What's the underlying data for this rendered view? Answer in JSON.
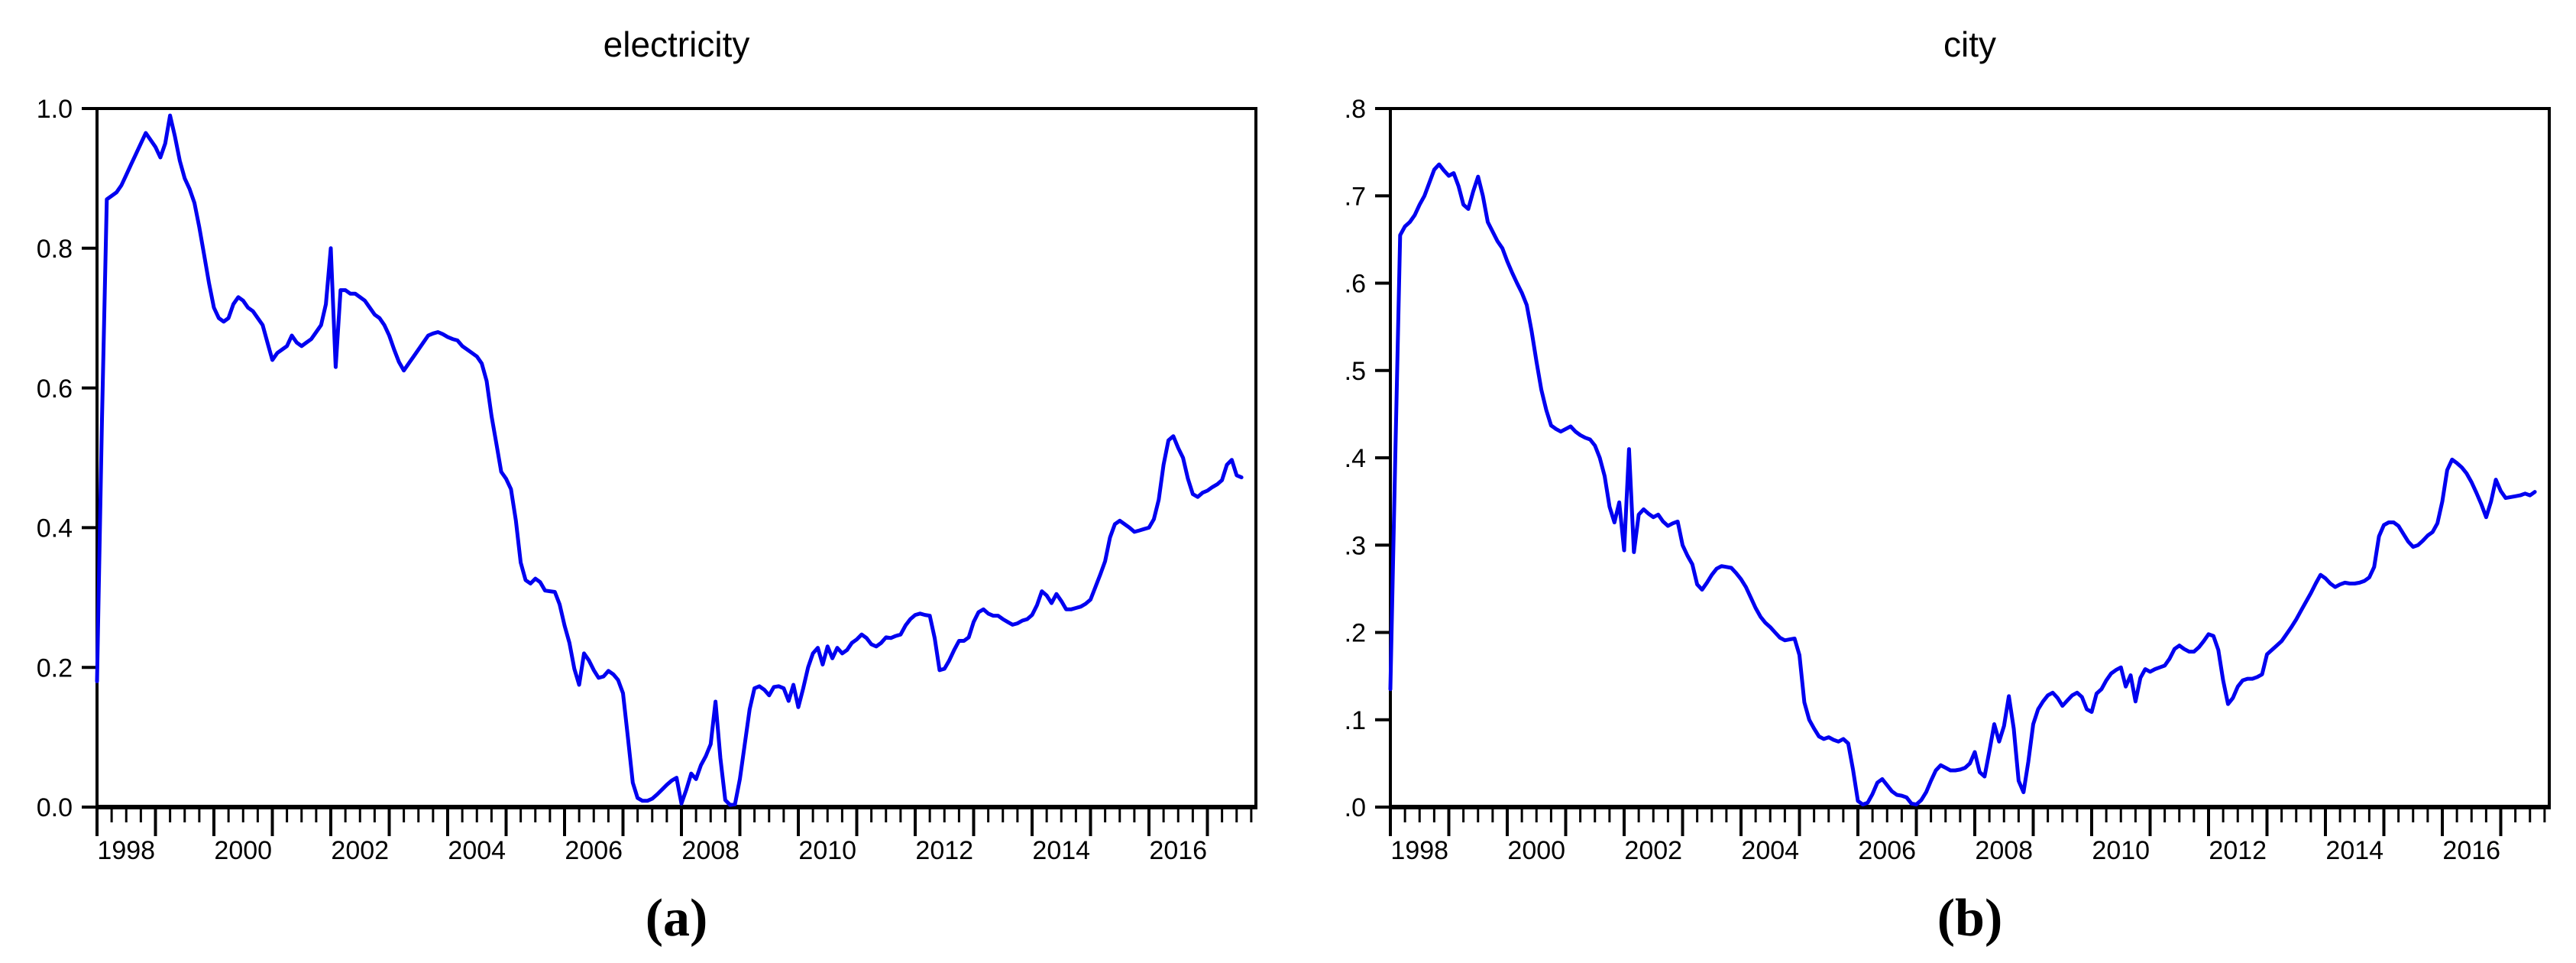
{
  "figure": {
    "background": "#ffffff",
    "axis_color": "#000000",
    "tick_label_color": "#000000"
  },
  "chart_data": [
    {
      "type": "line",
      "id": "electricity",
      "title": "electricity",
      "caption": "(a)",
      "line_color": "#0000F0",
      "grid": false,
      "legend": "none",
      "frequency": "monthly",
      "x_start_year": 1998.0,
      "xlim": [
        1998.0,
        2017.83
      ],
      "ylim": [
        0.0,
        1.0
      ],
      "y_tick_values": [
        1.0,
        0.8,
        0.6,
        0.4,
        0.2,
        0.0
      ],
      "y_tick_labels": [
        "1.0",
        "0.8",
        "0.6",
        "0.4",
        "0.2",
        "0.0"
      ],
      "x_tick_label_years": [
        1998,
        2000,
        2002,
        2004,
        2006,
        2008,
        2010,
        2012,
        2014,
        2016
      ],
      "x_tick_labels": [
        "1998",
        "2000",
        "2002",
        "2004",
        "2006",
        "2008",
        "2010",
        "2012",
        "2014",
        "2016"
      ],
      "x_minor_tick": "quarterly",
      "values": [
        0.18,
        0.55,
        0.87,
        0.875,
        0.88,
        0.89,
        0.905,
        0.92,
        0.935,
        0.95,
        0.965,
        0.955,
        0.945,
        0.93,
        0.95,
        0.99,
        0.96,
        0.925,
        0.9,
        0.885,
        0.865,
        0.83,
        0.79,
        0.75,
        0.715,
        0.7,
        0.695,
        0.7,
        0.72,
        0.73,
        0.725,
        0.715,
        0.71,
        0.7,
        0.69,
        0.665,
        0.64,
        0.65,
        0.655,
        0.66,
        0.675,
        0.665,
        0.66,
        0.665,
        0.67,
        0.68,
        0.69,
        0.72,
        0.8,
        0.63,
        0.74,
        0.74,
        0.735,
        0.735,
        0.73,
        0.725,
        0.715,
        0.705,
        0.7,
        0.69,
        0.675,
        0.655,
        0.637,
        0.625,
        0.635,
        0.645,
        0.655,
        0.665,
        0.675,
        0.678,
        0.68,
        0.677,
        0.673,
        0.67,
        0.668,
        0.66,
        0.655,
        0.65,
        0.645,
        0.635,
        0.61,
        0.56,
        0.52,
        0.48,
        0.47,
        0.455,
        0.41,
        0.35,
        0.325,
        0.32,
        0.327,
        0.322,
        0.31,
        0.309,
        0.308,
        0.29,
        0.26,
        0.235,
        0.198,
        0.175,
        0.22,
        0.21,
        0.196,
        0.185,
        0.187,
        0.195,
        0.19,
        0.182,
        0.163,
        0.1,
        0.035,
        0.013,
        0.009,
        0.009,
        0.012,
        0.018,
        0.025,
        0.032,
        0.038,
        0.042,
        0.005,
        0.025,
        0.048,
        0.04,
        0.06,
        0.073,
        0.09,
        0.151,
        0.07,
        0.01,
        0.003,
        0.004,
        0.04,
        0.09,
        0.14,
        0.17,
        0.173,
        0.168,
        0.16,
        0.172,
        0.173,
        0.17,
        0.152,
        0.175,
        0.143,
        0.17,
        0.2,
        0.22,
        0.228,
        0.204,
        0.23,
        0.213,
        0.228,
        0.22,
        0.225,
        0.235,
        0.24,
        0.247,
        0.242,
        0.233,
        0.23,
        0.235,
        0.243,
        0.242,
        0.245,
        0.247,
        0.26,
        0.269,
        0.275,
        0.277,
        0.275,
        0.274,
        0.242,
        0.196,
        0.198,
        0.21,
        0.225,
        0.238,
        0.238,
        0.243,
        0.265,
        0.279,
        0.283,
        0.277,
        0.274,
        0.274,
        0.269,
        0.265,
        0.261,
        0.263,
        0.267,
        0.269,
        0.275,
        0.289,
        0.309,
        0.303,
        0.292,
        0.305,
        0.295,
        0.283,
        0.283,
        0.285,
        0.287,
        0.291,
        0.297,
        0.315,
        0.333,
        0.352,
        0.386,
        0.405,
        0.41,
        0.405,
        0.4,
        0.394,
        0.396,
        0.398,
        0.4,
        0.412,
        0.44,
        0.49,
        0.525,
        0.531,
        0.514,
        0.5,
        0.47,
        0.448,
        0.444,
        0.45,
        0.453,
        0.458,
        0.462,
        0.468,
        0.49,
        0.497,
        0.475,
        0.472
      ]
    },
    {
      "type": "line",
      "id": "city",
      "title": "city",
      "caption": "(b)",
      "line_color": "#0000F0",
      "grid": false,
      "legend": "none",
      "frequency": "monthly",
      "x_start_year": 1998.0,
      "xlim": [
        1998.0,
        2017.83
      ],
      "ylim": [
        0.0,
        0.8
      ],
      "y_tick_values": [
        0.8,
        0.7,
        0.6,
        0.5,
        0.4,
        0.3,
        0.2,
        0.1,
        0.0
      ],
      "y_tick_labels": [
        ".8",
        ".7",
        ".6",
        ".5",
        ".4",
        ".3",
        ".2",
        ".1",
        ".0"
      ],
      "x_tick_label_years": [
        1998,
        2000,
        2002,
        2004,
        2006,
        2008,
        2010,
        2012,
        2014,
        2016
      ],
      "x_tick_labels": [
        "1998",
        "2000",
        "2002",
        "2004",
        "2006",
        "2008",
        "2010",
        "2012",
        "2014",
        "2016"
      ],
      "x_minor_tick": "quarterly",
      "values": [
        0.135,
        0.4,
        0.655,
        0.665,
        0.67,
        0.678,
        0.69,
        0.7,
        0.715,
        0.73,
        0.736,
        0.729,
        0.723,
        0.726,
        0.711,
        0.69,
        0.685,
        0.705,
        0.722,
        0.7,
        0.67,
        0.659,
        0.648,
        0.64,
        0.625,
        0.612,
        0.6,
        0.589,
        0.575,
        0.545,
        0.51,
        0.478,
        0.455,
        0.437,
        0.433,
        0.43,
        0.433,
        0.436,
        0.43,
        0.426,
        0.423,
        0.421,
        0.414,
        0.4,
        0.379,
        0.344,
        0.326,
        0.349,
        0.294,
        0.41,
        0.292,
        0.335,
        0.341,
        0.336,
        0.332,
        0.335,
        0.327,
        0.322,
        0.325,
        0.327,
        0.3,
        0.288,
        0.278,
        0.255,
        0.249,
        0.257,
        0.266,
        0.273,
        0.276,
        0.275,
        0.274,
        0.268,
        0.261,
        0.252,
        0.24,
        0.228,
        0.218,
        0.211,
        0.206,
        0.2,
        0.194,
        0.191,
        0.192,
        0.193,
        0.174,
        0.12,
        0.1,
        0.09,
        0.081,
        0.078,
        0.08,
        0.077,
        0.075,
        0.078,
        0.073,
        0.043,
        0.007,
        0.003,
        0.005,
        0.015,
        0.028,
        0.032,
        0.025,
        0.018,
        0.014,
        0.013,
        0.011,
        0.004,
        0.003,
        0.008,
        0.017,
        0.03,
        0.042,
        0.048,
        0.045,
        0.042,
        0.042,
        0.043,
        0.045,
        0.05,
        0.063,
        0.04,
        0.035,
        0.064,
        0.095,
        0.075,
        0.093,
        0.127,
        0.09,
        0.03,
        0.017,
        0.052,
        0.095,
        0.112,
        0.121,
        0.128,
        0.131,
        0.125,
        0.116,
        0.122,
        0.128,
        0.131,
        0.126,
        0.112,
        0.109,
        0.13,
        0.135,
        0.145,
        0.153,
        0.157,
        0.16,
        0.138,
        0.151,
        0.121,
        0.148,
        0.158,
        0.155,
        0.158,
        0.16,
        0.162,
        0.17,
        0.181,
        0.185,
        0.181,
        0.178,
        0.178,
        0.183,
        0.19,
        0.198,
        0.196,
        0.18,
        0.145,
        0.118,
        0.125,
        0.138,
        0.145,
        0.147,
        0.147,
        0.149,
        0.152,
        0.175,
        0.18,
        0.185,
        0.19,
        0.198,
        0.206,
        0.215,
        0.225,
        0.235,
        0.245,
        0.256,
        0.266,
        0.262,
        0.256,
        0.252,
        0.255,
        0.257,
        0.256,
        0.256,
        0.257,
        0.259,
        0.263,
        0.275,
        0.31,
        0.323,
        0.326,
        0.326,
        0.322,
        0.313,
        0.304,
        0.298,
        0.3,
        0.305,
        0.311,
        0.315,
        0.325,
        0.35,
        0.386,
        0.398,
        0.394,
        0.389,
        0.382,
        0.372,
        0.36,
        0.347,
        0.332,
        0.35,
        0.375,
        0.362,
        0.354,
        0.355,
        0.356,
        0.357,
        0.359,
        0.357,
        0.361
      ]
    }
  ]
}
